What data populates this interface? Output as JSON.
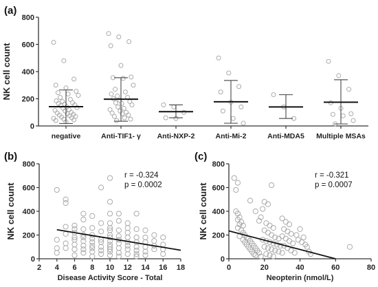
{
  "chart_data": [
    {
      "type": "scatter",
      "panel_label": "(a)",
      "ylabel": "NK cell count",
      "ylim": [
        0,
        800
      ],
      "yticks": [
        0,
        200,
        400,
        600,
        800
      ],
      "categories": [
        "negative",
        "Anti-TIF1- γ",
        "Anti-NXP-2",
        "Anti-Mi-2",
        "Anti-MDA5",
        "Multiple MSAs"
      ],
      "groups": [
        {
          "name": "negative",
          "mean": 142,
          "lower": 18,
          "upper": 265,
          "points": [
            615,
            480,
            345,
            300,
            280,
            255,
            245,
            235,
            225,
            210,
            195,
            185,
            180,
            170,
            165,
            160,
            155,
            150,
            140,
            135,
            130,
            120,
            115,
            110,
            100,
            95,
            90,
            85,
            80,
            75,
            70,
            65,
            60,
            55,
            50,
            45,
            40,
            30
          ]
        },
        {
          "name": "Anti-TIF1- γ",
          "mean": 197,
          "lower": 35,
          "upper": 355,
          "points": [
            680,
            655,
            620,
            590,
            445,
            360,
            355,
            350,
            300,
            270,
            250,
            235,
            220,
            210,
            200,
            190,
            180,
            170,
            165,
            155,
            140,
            130,
            120,
            110,
            100,
            95,
            90,
            80,
            70,
            60,
            50,
            40
          ]
        },
        {
          "name": "Anti-NXP-2",
          "mean": 105,
          "lower": 60,
          "upper": 155,
          "points": [
            155,
            140,
            100,
            60,
            55
          ]
        },
        {
          "name": "Anti-Mi-2",
          "mean": 178,
          "lower": 20,
          "upper": 335,
          "points": [
            500,
            390,
            290,
            250,
            175,
            140,
            110,
            55,
            20
          ]
        },
        {
          "name": "Anti-MDA5",
          "mean": 140,
          "lower": 55,
          "upper": 230,
          "points": [
            230,
            140,
            55
          ]
        },
        {
          "name": "Multiple MSAs",
          "mean": 175,
          "lower": 15,
          "upper": 340,
          "points": [
            475,
            370,
            270,
            170,
            130,
            90,
            85,
            75,
            40,
            15
          ]
        }
      ]
    },
    {
      "type": "scatter",
      "panel_label": "(b)",
      "xlabel": "Disease Activity Score - Total",
      "ylabel": "NK cell count",
      "xlim": [
        2,
        18
      ],
      "ylim": [
        0,
        800
      ],
      "xticks": [
        2,
        4,
        6,
        8,
        10,
        12,
        14,
        16,
        18
      ],
      "yticks": [
        0,
        200,
        400,
        600,
        800
      ],
      "annotation": [
        "r = -0.324",
        "p = 0.0002"
      ],
      "trend": {
        "x": [
          4,
          18
        ],
        "y": [
          245,
          72
        ]
      },
      "points": [
        [
          4,
          580
        ],
        [
          4,
          160
        ],
        [
          4,
          90
        ],
        [
          4,
          50
        ],
        [
          5,
          500
        ],
        [
          5,
          470
        ],
        [
          5,
          270
        ],
        [
          5,
          210
        ],
        [
          5,
          130
        ],
        [
          5,
          90
        ],
        [
          6,
          280
        ],
        [
          6,
          250
        ],
        [
          6,
          220
        ],
        [
          6,
          180
        ],
        [
          6,
          160
        ],
        [
          6,
          120
        ],
        [
          6,
          80
        ],
        [
          6,
          30
        ],
        [
          7,
          380
        ],
        [
          7,
          330
        ],
        [
          7,
          250
        ],
        [
          7,
          200
        ],
        [
          7,
          180
        ],
        [
          7,
          150
        ],
        [
          7,
          110
        ],
        [
          7,
          80
        ],
        [
          7,
          50
        ],
        [
          8,
          360
        ],
        [
          8,
          260
        ],
        [
          8,
          200
        ],
        [
          8,
          170
        ],
        [
          8,
          140
        ],
        [
          8,
          110
        ],
        [
          8,
          90
        ],
        [
          8,
          60
        ],
        [
          8,
          20
        ],
        [
          9,
          600
        ],
        [
          9,
          300
        ],
        [
          9,
          230
        ],
        [
          9,
          160
        ],
        [
          9,
          140
        ],
        [
          9,
          100
        ],
        [
          9,
          70
        ],
        [
          9,
          40
        ],
        [
          10,
          680
        ],
        [
          10,
          480
        ],
        [
          10,
          380
        ],
        [
          10,
          300
        ],
        [
          10,
          260
        ],
        [
          10,
          240
        ],
        [
          10,
          200
        ],
        [
          10,
          180
        ],
        [
          10,
          150
        ],
        [
          10,
          120
        ],
        [
          10,
          100
        ],
        [
          10,
          80
        ],
        [
          10,
          60
        ],
        [
          10,
          30
        ],
        [
          11,
          380
        ],
        [
          11,
          320
        ],
        [
          11,
          240
        ],
        [
          11,
          190
        ],
        [
          11,
          160
        ],
        [
          11,
          130
        ],
        [
          11,
          90
        ],
        [
          11,
          50
        ],
        [
          11,
          20
        ],
        [
          12,
          300
        ],
        [
          12,
          260
        ],
        [
          12,
          220
        ],
        [
          12,
          180
        ],
        [
          12,
          140
        ],
        [
          12,
          110
        ],
        [
          12,
          80
        ],
        [
          12,
          40
        ],
        [
          13,
          380
        ],
        [
          13,
          250
        ],
        [
          13,
          180
        ],
        [
          13,
          140
        ],
        [
          13,
          100
        ],
        [
          13,
          70
        ],
        [
          13,
          40
        ],
        [
          13,
          20
        ],
        [
          14,
          240
        ],
        [
          14,
          180
        ],
        [
          14,
          140
        ],
        [
          14,
          100
        ],
        [
          14,
          60
        ],
        [
          14,
          30
        ],
        [
          15,
          200
        ],
        [
          15,
          150
        ],
        [
          15,
          110
        ],
        [
          15,
          80
        ],
        [
          16,
          180
        ],
        [
          16,
          120
        ],
        [
          16,
          80
        ],
        [
          16,
          40
        ]
      ]
    },
    {
      "type": "scatter",
      "panel_label": "(c)",
      "xlabel": "Neopterin (nmol/L)",
      "ylabel": "NK cell count",
      "xlim": [
        0,
        80
      ],
      "ylim": [
        0,
        800
      ],
      "xticks": [
        0,
        20,
        40,
        60,
        80
      ],
      "yticks": [
        0,
        200,
        400,
        600,
        800
      ],
      "annotation": [
        "r = -0.321",
        "p = 0.0007"
      ],
      "trend": {
        "x": [
          0,
          60
        ],
        "y": [
          235,
          0
        ]
      },
      "points": [
        [
          3,
          680
        ],
        [
          4,
          580
        ],
        [
          5,
          640
        ],
        [
          4,
          400
        ],
        [
          5,
          380
        ],
        [
          6,
          350
        ],
        [
          5,
          330
        ],
        [
          7,
          310
        ],
        [
          6,
          290
        ],
        [
          8,
          280
        ],
        [
          5,
          260
        ],
        [
          7,
          240
        ],
        [
          8,
          220
        ],
        [
          9,
          200
        ],
        [
          6,
          190
        ],
        [
          10,
          180
        ],
        [
          11,
          170
        ],
        [
          8,
          160
        ],
        [
          12,
          150
        ],
        [
          9,
          140
        ],
        [
          13,
          130
        ],
        [
          10,
          120
        ],
        [
          14,
          110
        ],
        [
          11,
          100
        ],
        [
          15,
          90
        ],
        [
          12,
          80
        ],
        [
          16,
          70
        ],
        [
          13,
          60
        ],
        [
          17,
          50
        ],
        [
          14,
          40
        ],
        [
          15,
          30
        ],
        [
          18,
          20
        ],
        [
          20,
          480
        ],
        [
          22,
          460
        ],
        [
          24,
          620
        ],
        [
          19,
          420
        ],
        [
          18,
          350
        ],
        [
          21,
          300
        ],
        [
          23,
          280
        ],
        [
          25,
          260
        ],
        [
          20,
          240
        ],
        [
          22,
          220
        ],
        [
          24,
          200
        ],
        [
          26,
          180
        ],
        [
          28,
          170
        ],
        [
          19,
          160
        ],
        [
          21,
          150
        ],
        [
          23,
          140
        ],
        [
          25,
          130
        ],
        [
          27,
          120
        ],
        [
          29,
          110
        ],
        [
          20,
          100
        ],
        [
          22,
          90
        ],
        [
          24,
          80
        ],
        [
          26,
          70
        ],
        [
          28,
          60
        ],
        [
          30,
          50
        ],
        [
          21,
          40
        ],
        [
          23,
          30
        ],
        [
          25,
          20
        ],
        [
          30,
          340
        ],
        [
          32,
          310
        ],
        [
          34,
          290
        ],
        [
          31,
          250
        ],
        [
          33,
          230
        ],
        [
          35,
          210
        ],
        [
          30,
          190
        ],
        [
          32,
          170
        ],
        [
          34,
          150
        ],
        [
          36,
          130
        ],
        [
          31,
          110
        ],
        [
          33,
          90
        ],
        [
          35,
          70
        ],
        [
          37,
          50
        ],
        [
          40,
          250
        ],
        [
          38,
          200
        ],
        [
          42,
          180
        ],
        [
          39,
          160
        ],
        [
          41,
          140
        ],
        [
          43,
          120
        ],
        [
          44,
          100
        ],
        [
          45,
          60
        ],
        [
          46,
          40
        ],
        [
          68,
          100
        ],
        [
          12,
          490
        ],
        [
          15,
          400
        ],
        [
          17,
          320
        ]
      ]
    }
  ]
}
